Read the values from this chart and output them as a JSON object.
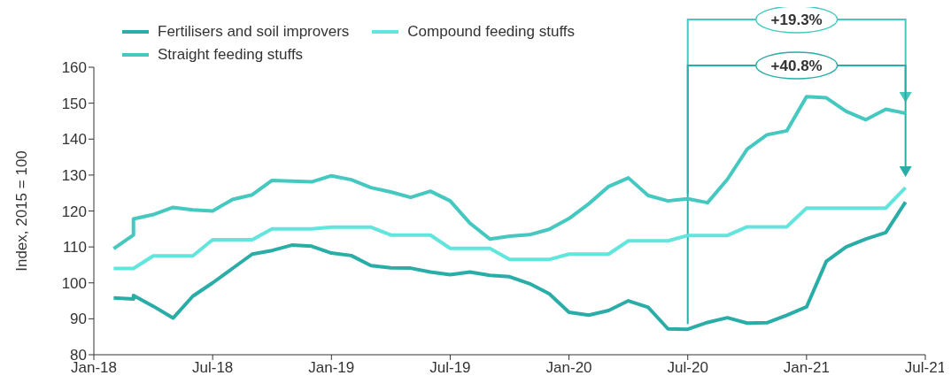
{
  "chart_data": {
    "type": "line",
    "ylabel": "Index, 2015 = 100",
    "ylim": [
      80,
      160
    ],
    "yticks": [
      80,
      90,
      100,
      110,
      120,
      130,
      140,
      150,
      160
    ],
    "xlim": [
      "2018-01",
      "2021-07"
    ],
    "xticks": [
      {
        "value": "2018-01",
        "label": "Jan-18"
      },
      {
        "value": "2018-07",
        "label": "Jul-18"
      },
      {
        "value": "2019-01",
        "label": "Jan-19"
      },
      {
        "value": "2019-07",
        "label": "Jul-19"
      },
      {
        "value": "2020-01",
        "label": "Jan-20"
      },
      {
        "value": "2020-07",
        "label": "Jul-20"
      },
      {
        "value": "2021-01",
        "label": "Jan-21"
      },
      {
        "value": "2021-07",
        "label": "Jul-21"
      }
    ],
    "grid": false,
    "legend": "top",
    "marker": "none",
    "line_style": "solid",
    "annotations": [
      "+19.3%",
      "+40.8%"
    ],
    "series": [
      {
        "name": "Fertilisers and soil improvers",
        "color": "#2aada6",
        "x": [
          "2018-02",
          "2018-03",
          "2018-03",
          "2018-04",
          "2018-05",
          "2018-06",
          "2018-07",
          "2018-08",
          "2018-09",
          "2018-10",
          "2018-11",
          "2018-12",
          "2019-01",
          "2019-02",
          "2019-03",
          "2019-04",
          "2019-05",
          "2019-06",
          "2019-07",
          "2019-08",
          "2019-09",
          "2019-10",
          "2019-11",
          "2019-12",
          "2020-01",
          "2020-02",
          "2020-03",
          "2020-04",
          "2020-05",
          "2020-06",
          "2020-07",
          "2020-08",
          "2020-09",
          "2020-10",
          "2020-11",
          "2020-12",
          "2021-01",
          "2021-02",
          "2021-03",
          "2021-04",
          "2021-05",
          "2021-06"
        ],
        "values": [
          95.8,
          95.5,
          96.5,
          93.5,
          90.2,
          96.3,
          100,
          104,
          108,
          109,
          110.5,
          110.2,
          108.3,
          107.6,
          104.8,
          104.2,
          104.1,
          103,
          102.3,
          103,
          102.1,
          101.7,
          99.8,
          97,
          91.8,
          91,
          92.3,
          95,
          93.2,
          87.2,
          87.1,
          89,
          90.3,
          88.8,
          88.9,
          91,
          93.3,
          106,
          110,
          112.2,
          114,
          122.5
        ]
      },
      {
        "name": "Compound feeding stuffs",
        "color": "#62e5dc",
        "x": [
          "2018-02",
          "2018-03",
          "2018-04",
          "2018-05",
          "2018-06",
          "2018-07",
          "2018-08",
          "2018-09",
          "2018-10",
          "2018-11",
          "2018-12",
          "2019-01",
          "2019-02",
          "2019-03",
          "2019-04",
          "2019-05",
          "2019-06",
          "2019-07",
          "2019-08",
          "2019-09",
          "2019-10",
          "2019-11",
          "2019-12",
          "2020-01",
          "2020-02",
          "2020-03",
          "2020-04",
          "2020-05",
          "2020-06",
          "2020-07",
          "2020-08",
          "2020-09",
          "2020-10",
          "2020-11",
          "2020-12",
          "2021-01",
          "2021-02",
          "2021-03",
          "2021-04",
          "2021-05",
          "2021-06"
        ],
        "values": [
          104,
          104,
          107.5,
          107.5,
          107.5,
          112,
          112,
          112,
          115,
          115,
          115,
          115.5,
          115.5,
          115.5,
          113.3,
          113.3,
          113.3,
          109.6,
          109.6,
          109.6,
          106.5,
          106.5,
          106.5,
          108,
          108,
          108,
          111.7,
          111.7,
          111.7,
          113.2,
          113.2,
          113.2,
          115.6,
          115.6,
          115.6,
          120.8,
          120.8,
          120.8,
          120.8,
          120.8,
          126.5
        ]
      },
      {
        "name": "Straight feeding stuffs",
        "color": "#45c8bf",
        "x": [
          "2018-02",
          "2018-03",
          "2018-03",
          "2018-04",
          "2018-05",
          "2018-06",
          "2018-07",
          "2018-08",
          "2018-09",
          "2018-10",
          "2018-11",
          "2018-12",
          "2019-01",
          "2019-02",
          "2019-03",
          "2019-04",
          "2019-05",
          "2019-06",
          "2019-07",
          "2019-08",
          "2019-09",
          "2019-10",
          "2019-11",
          "2019-12",
          "2020-01",
          "2020-02",
          "2020-03",
          "2020-04",
          "2020-05",
          "2020-06",
          "2020-07",
          "2020-08",
          "2020-09",
          "2020-10",
          "2020-11",
          "2020-12",
          "2021-01",
          "2021-02",
          "2021-03",
          "2021-04",
          "2021-05",
          "2021-06"
        ],
        "values": [
          109.5,
          113.3,
          117.8,
          119,
          121,
          120.3,
          120,
          123.2,
          124.5,
          128.5,
          128.3,
          128.1,
          129.8,
          128.7,
          126.5,
          125.3,
          123.8,
          125.5,
          122.8,
          116.6,
          112.2,
          113,
          113.4,
          114.9,
          117.9,
          122,
          126.8,
          129.2,
          124.3,
          122.8,
          123.4,
          122.3,
          128.8,
          137.2,
          141.2,
          142.3,
          151.8,
          151.5,
          147.7,
          145.4,
          148.3,
          147.2
        ]
      }
    ]
  }
}
